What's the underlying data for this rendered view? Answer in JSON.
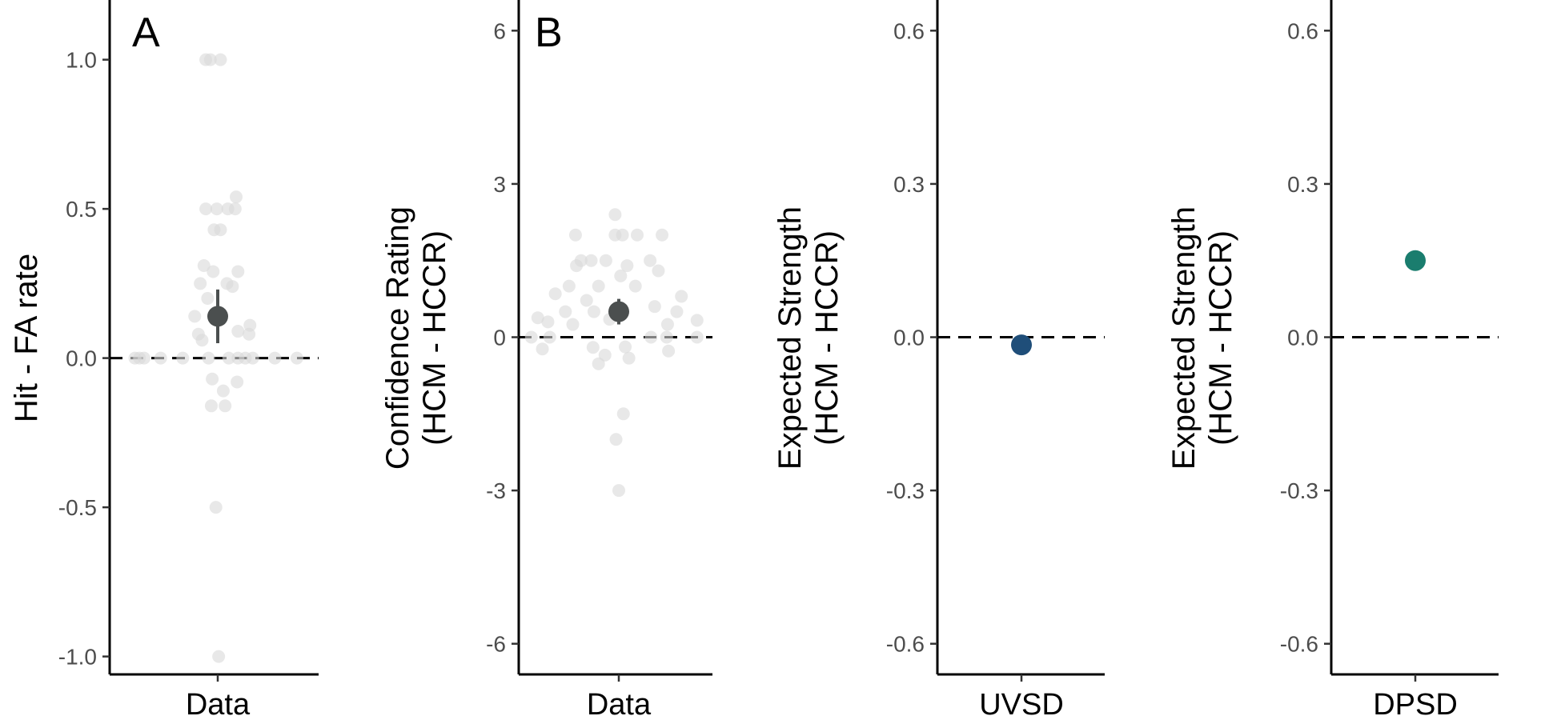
{
  "chart_data": [
    {
      "type": "scatter",
      "panel_tag": "A",
      "title": "",
      "ylabel": "Hit - FA rate",
      "ylabel_line2": "",
      "categories": [
        "Data"
      ],
      "ylim": [
        -1.06,
        1.2
      ],
      "yticks": [
        -1.0,
        -0.5,
        0.0,
        0.5,
        1.0
      ],
      "yticklabels": [
        "-1.0",
        "-0.5",
        "0.0",
        "0.5",
        "1.0"
      ],
      "zero_line": true,
      "grid": false,
      "point_color": "#d9d9d9",
      "points": [
        {
          "x": -0.9,
          "y": 0
        },
        {
          "x": -0.85,
          "y": 0
        },
        {
          "x": -0.8,
          "y": 0
        },
        {
          "x": -0.62,
          "y": 0
        },
        {
          "x": -0.38,
          "y": 0
        },
        {
          "x": -0.1,
          "y": 0
        },
        {
          "x": 0.12,
          "y": 0
        },
        {
          "x": 0.22,
          "y": 0
        },
        {
          "x": 0.3,
          "y": 0
        },
        {
          "x": 0.38,
          "y": 0
        },
        {
          "x": 0.62,
          "y": 0
        },
        {
          "x": 0.86,
          "y": 0
        },
        {
          "x": -0.13,
          "y": 1.0
        },
        {
          "x": -0.08,
          "y": 1.0
        },
        {
          "x": 0.03,
          "y": 1.0
        },
        {
          "x": 0.2,
          "y": 0.54
        },
        {
          "x": -0.13,
          "y": 0.5
        },
        {
          "x": -0.01,
          "y": 0.5
        },
        {
          "x": 0.11,
          "y": 0.5
        },
        {
          "x": 0.19,
          "y": 0.5
        },
        {
          "x": -0.04,
          "y": 0.43
        },
        {
          "x": 0.03,
          "y": 0.43
        },
        {
          "x": -0.15,
          "y": 0.31
        },
        {
          "x": -0.05,
          "y": 0.29
        },
        {
          "x": 0.22,
          "y": 0.29
        },
        {
          "x": -0.19,
          "y": 0.25
        },
        {
          "x": 0.1,
          "y": 0.25
        },
        {
          "x": 0.16,
          "y": 0.24
        },
        {
          "x": -0.11,
          "y": 0.2
        },
        {
          "x": -0.25,
          "y": 0.14
        },
        {
          "x": -0.21,
          "y": 0.08
        },
        {
          "x": 0.35,
          "y": 0.11
        },
        {
          "x": 0.34,
          "y": 0.08
        },
        {
          "x": 0.22,
          "y": 0.09
        },
        {
          "x": -0.17,
          "y": 0.06
        },
        {
          "x": -0.06,
          "y": -0.07
        },
        {
          "x": 0.21,
          "y": -0.08
        },
        {
          "x": 0.06,
          "y": -0.11
        },
        {
          "x": -0.07,
          "y": -0.16
        },
        {
          "x": 0.08,
          "y": -0.16
        },
        {
          "x": -0.02,
          "y": -0.5
        },
        {
          "x": 0.01,
          "y": -1.0
        }
      ],
      "mean": {
        "x": 0,
        "y": 0.14,
        "lower": 0.05,
        "upper": 0.23,
        "color": "#4b4f4f"
      }
    },
    {
      "type": "scatter",
      "panel_tag": "B",
      "title": "",
      "ylabel": "Confidence Rating",
      "ylabel_line2": "(HCM - HCCR)",
      "categories": [
        "Data"
      ],
      "ylim": [
        -6.6,
        6.6
      ],
      "yticks": [
        -6,
        -3,
        0,
        3,
        6
      ],
      "yticklabels": [
        "-6",
        "-3",
        "0",
        "3",
        "6"
      ],
      "zero_line": true,
      "grid": false,
      "point_color": "#d9d9d9",
      "points": [
        {
          "x": -0.95,
          "y": 0
        },
        {
          "x": -0.75,
          "y": 0
        },
        {
          "x": 0.35,
          "y": 0
        },
        {
          "x": 0.85,
          "y": 0
        },
        {
          "x": -0.88,
          "y": 0.38
        },
        {
          "x": -0.77,
          "y": 0.3
        },
        {
          "x": 0.85,
          "y": 0.33
        },
        {
          "x": -0.69,
          "y": 0.85
        },
        {
          "x": -0.58,
          "y": 0.5
        },
        {
          "x": -0.54,
          "y": 1.0
        },
        {
          "x": -0.5,
          "y": 0.25
        },
        {
          "x": -0.46,
          "y": 1.4
        },
        {
          "x": -0.41,
          "y": 1.5
        },
        {
          "x": -0.47,
          "y": 2.0
        },
        {
          "x": -0.35,
          "y": 0.72
        },
        {
          "x": -0.3,
          "y": 1.5
        },
        {
          "x": -0.27,
          "y": 0.5
        },
        {
          "x": -0.22,
          "y": 1.0
        },
        {
          "x": -0.14,
          "y": 1.5
        },
        {
          "x": -0.1,
          "y": 0.35
        },
        {
          "x": -0.04,
          "y": 2.4
        },
        {
          "x": -0.04,
          "y": 2.0
        },
        {
          "x": 0.02,
          "y": 1.2
        },
        {
          "x": 0.04,
          "y": 2.0
        },
        {
          "x": 0.09,
          "y": 1.4
        },
        {
          "x": 0.18,
          "y": 1.0
        },
        {
          "x": 0.2,
          "y": 2.0
        },
        {
          "x": 0.34,
          "y": 1.5
        },
        {
          "x": 0.39,
          "y": 0.6
        },
        {
          "x": 0.43,
          "y": 1.3
        },
        {
          "x": 0.47,
          "y": 2.0
        },
        {
          "x": 0.53,
          "y": 0.25
        },
        {
          "x": 0.63,
          "y": 0.5
        },
        {
          "x": 0.68,
          "y": 0.8
        },
        {
          "x": 0.52,
          "y": 0.0
        },
        {
          "x": -0.83,
          "y": -0.23
        },
        {
          "x": -0.28,
          "y": -0.2
        },
        {
          "x": -0.15,
          "y": -0.35
        },
        {
          "x": -0.22,
          "y": -0.52
        },
        {
          "x": 0.07,
          "y": -0.19
        },
        {
          "x": 0.11,
          "y": -0.41
        },
        {
          "x": 0.54,
          "y": -0.27
        },
        {
          "x": 0.05,
          "y": -1.5
        },
        {
          "x": -0.03,
          "y": -2.0
        },
        {
          "x": 0.0,
          "y": -3.0
        }
      ],
      "mean": {
        "x": 0,
        "y": 0.5,
        "lower": 0.25,
        "upper": 0.75,
        "color": "#4b4f4f"
      }
    },
    {
      "type": "scatter",
      "panel_tag": "",
      "title": "",
      "ylabel": "Expected Strength",
      "ylabel_line2": "(HCM - HCCR)",
      "categories": [
        "UVSD"
      ],
      "ylim": [
        -0.66,
        0.66
      ],
      "yticks": [
        -0.6,
        -0.3,
        0.0,
        0.3,
        0.6
      ],
      "yticklabels": [
        "-0.6",
        "-0.3",
        "0.0",
        "0.3",
        "0.6"
      ],
      "zero_line": true,
      "grid": false,
      "point_color": "#d9d9d9",
      "points": [],
      "mean": {
        "x": 0,
        "y": -0.015,
        "lower": null,
        "upper": null,
        "color": "#1f4e79"
      }
    },
    {
      "type": "scatter",
      "panel_tag": "",
      "title": "",
      "ylabel": "Expected Strength",
      "ylabel_line2": "(HCM - HCCR)",
      "categories": [
        "DPSD"
      ],
      "ylim": [
        -0.66,
        0.66
      ],
      "yticks": [
        -0.6,
        -0.3,
        0.0,
        0.3,
        0.6
      ],
      "yticklabels": [
        "-0.6",
        "-0.3",
        "0.0",
        "0.3",
        "0.6"
      ],
      "zero_line": true,
      "grid": false,
      "point_color": "#d9d9d9",
      "points": [],
      "mean": {
        "x": 0,
        "y": 0.15,
        "lower": null,
        "upper": null,
        "color": "#1a7d6e"
      }
    }
  ]
}
